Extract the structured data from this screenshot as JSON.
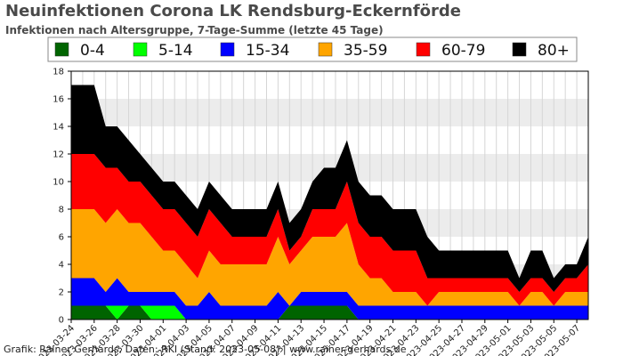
{
  "title": "Neuinfektionen Corona LK Rendsburg-Eckernförde",
  "subtitle": "Infektionen nach Altersgruppe, 7-Tage-Summe (letzte 45 Tage)",
  "credit": "Grafik: Rainer Gerhards, Daten: RKI (Stand: 2023-05-08) | www.rainer-gerhards.de",
  "chart_data": {
    "type": "area",
    "stacked": true,
    "title": "Neuinfektionen Corona LK Rendsburg-Eckernförde",
    "subtitle": "Infektionen nach Altersgruppe, 7-Tage-Summe (letzte 45 Tage)",
    "xlabel": "",
    "ylabel": "",
    "ylim": [
      0,
      18
    ],
    "yticks": [
      0,
      2,
      4,
      6,
      8,
      10,
      12,
      14,
      16,
      18
    ],
    "grid": "horizontal bands",
    "legend": "top",
    "x": [
      "2023-03-24",
      "2023-03-25",
      "2023-03-26",
      "2023-03-27",
      "2023-03-28",
      "2023-03-29",
      "2023-03-30",
      "2023-03-31",
      "2023-04-01",
      "2023-04-02",
      "2023-04-03",
      "2023-04-04",
      "2023-04-05",
      "2023-04-06",
      "2023-04-07",
      "2023-04-08",
      "2023-04-09",
      "2023-04-10",
      "2023-04-11",
      "2023-04-12",
      "2023-04-13",
      "2023-04-14",
      "2023-04-15",
      "2023-04-16",
      "2023-04-17",
      "2023-04-18",
      "2023-04-19",
      "2023-04-20",
      "2023-04-21",
      "2023-04-22",
      "2023-04-23",
      "2023-04-24",
      "2023-04-25",
      "2023-04-26",
      "2023-04-27",
      "2023-04-28",
      "2023-04-29",
      "2023-04-30",
      "2023-05-01",
      "2023-05-02",
      "2023-05-03",
      "2023-05-04",
      "2023-05-05",
      "2023-05-06",
      "2023-05-07",
      "2023-05-08"
    ],
    "xtick_labels": [
      "2023-03-24",
      "2023-03-26",
      "2023-03-28",
      "2023-03-30",
      "2023-04-01",
      "2023-04-03",
      "2023-04-05",
      "2023-04-07",
      "2023-04-09",
      "2023-04-11",
      "2023-04-13",
      "2023-04-15",
      "2023-04-17",
      "2023-04-19",
      "2023-04-21",
      "2023-04-23",
      "2023-04-25",
      "2023-04-27",
      "2023-04-29",
      "2023-05-01",
      "2023-05-03",
      "2023-05-05",
      "2023-05-07"
    ],
    "series": [
      {
        "name": "0-4",
        "color": "#006400",
        "values": [
          1,
          1,
          1,
          1,
          0,
          1,
          1,
          0,
          0,
          0,
          0,
          0,
          0,
          0,
          0,
          0,
          0,
          0,
          0,
          1,
          1,
          1,
          1,
          1,
          1,
          0,
          0,
          0,
          0,
          0,
          0,
          0,
          0,
          0,
          0,
          0,
          0,
          0,
          0,
          0,
          0,
          0,
          0,
          0,
          0,
          0
        ]
      },
      {
        "name": "5-14",
        "color": "#00ff00",
        "values": [
          0,
          0,
          0,
          0,
          1,
          0,
          0,
          1,
          1,
          1,
          0,
          0,
          0,
          0,
          0,
          0,
          0,
          0,
          0,
          0,
          0,
          0,
          0,
          0,
          0,
          0,
          0,
          0,
          0,
          0,
          0,
          0,
          0,
          0,
          0,
          0,
          0,
          0,
          0,
          0,
          0,
          0,
          0,
          0,
          0,
          0
        ]
      },
      {
        "name": "15-34",
        "color": "#0000ff",
        "values": [
          2,
          2,
          2,
          1,
          2,
          1,
          1,
          1,
          1,
          1,
          1,
          1,
          2,
          1,
          1,
          1,
          1,
          1,
          2,
          0,
          1,
          1,
          1,
          1,
          1,
          1,
          1,
          1,
          1,
          1,
          1,
          1,
          1,
          1,
          1,
          1,
          1,
          1,
          1,
          1,
          1,
          1,
          1,
          1,
          1,
          1
        ]
      },
      {
        "name": "35-59",
        "color": "#ffa500",
        "values": [
          5,
          5,
          5,
          5,
          5,
          5,
          5,
          4,
          3,
          3,
          3,
          2,
          3,
          3,
          3,
          3,
          3,
          3,
          4,
          3,
          3,
          4,
          4,
          4,
          5,
          3,
          2,
          2,
          1,
          1,
          1,
          0,
          1,
          1,
          1,
          1,
          1,
          1,
          1,
          0,
          1,
          1,
          0,
          1,
          1,
          1
        ]
      },
      {
        "name": "60-79",
        "color": "#ff0000",
        "values": [
          4,
          4,
          4,
          4,
          3,
          3,
          3,
          3,
          3,
          3,
          3,
          3,
          3,
          3,
          2,
          2,
          2,
          2,
          2,
          1,
          1,
          2,
          2,
          2,
          3,
          3,
          3,
          3,
          3,
          3,
          3,
          2,
          1,
          1,
          1,
          1,
          1,
          1,
          1,
          1,
          1,
          1,
          1,
          1,
          1,
          2
        ]
      },
      {
        "name": "80+",
        "color": "#000000",
        "values": [
          5,
          5,
          5,
          3,
          3,
          3,
          2,
          2,
          2,
          2,
          2,
          2,
          2,
          2,
          2,
          2,
          2,
          2,
          2,
          2,
          2,
          2,
          3,
          3,
          3,
          3,
          3,
          3,
          3,
          3,
          3,
          3,
          2,
          2,
          2,
          2,
          2,
          2,
          2,
          1,
          2,
          2,
          1,
          1,
          1,
          2
        ]
      }
    ]
  }
}
